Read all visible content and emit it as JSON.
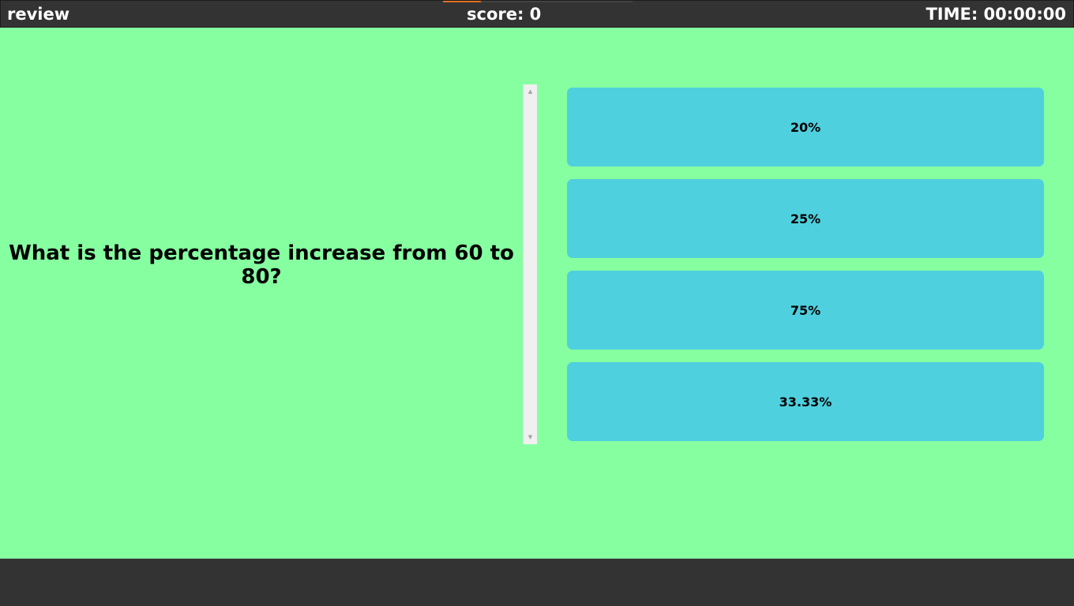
{
  "header": {
    "mode_label": "review",
    "score_label": "score: 0",
    "time_label": "TIME: 00:00:00",
    "progress_fraction": 0.2
  },
  "question": {
    "text": "What is the percentage increase from 60 to 80?"
  },
  "answers": [
    {
      "label": "20%"
    },
    {
      "label": "25%"
    },
    {
      "label": "75%"
    },
    {
      "label": "33.33%"
    }
  ],
  "scrollbar": {
    "up_icon": "scroll-up-arrow-icon",
    "down_icon": "scroll-down-arrow-icon"
  },
  "colors": {
    "background": "#86ffa1",
    "bar": "#333333",
    "answer": "#4fd0de",
    "progress": "#e07020"
  }
}
